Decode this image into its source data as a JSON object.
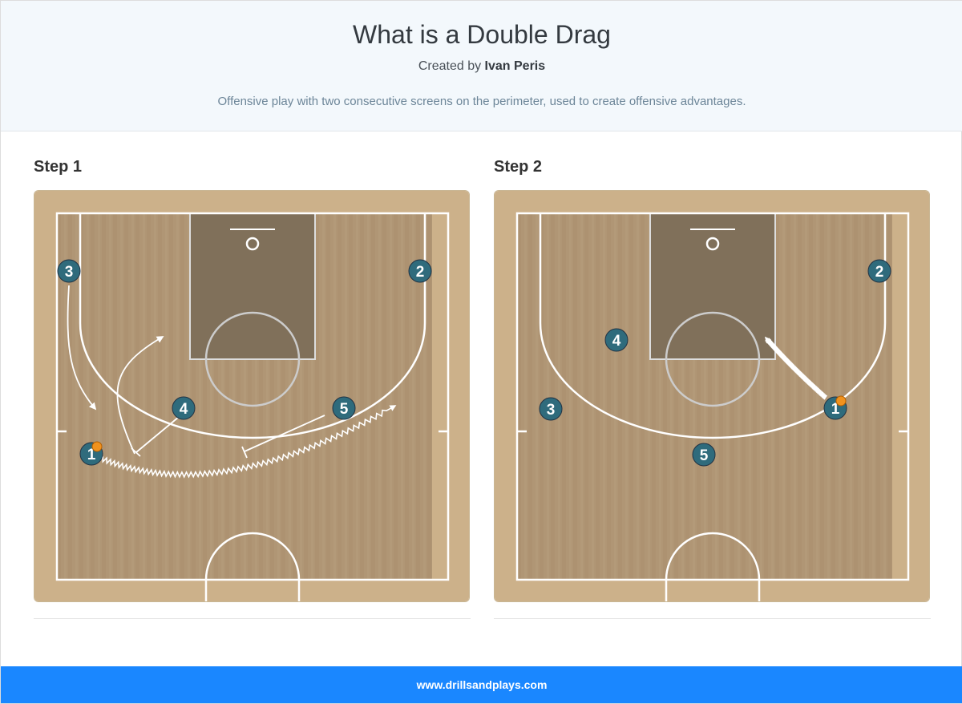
{
  "header": {
    "title": "What is a Double Drag",
    "created_by_label": "Created by",
    "author": "Ivan Peris",
    "description": "Offensive play with two consecutive screens on the perimeter, used to create offensive advantages."
  },
  "steps": [
    {
      "label": "Step 1",
      "players": [
        "1",
        "2",
        "3",
        "4",
        "5"
      ]
    },
    {
      "label": "Step 2",
      "players": [
        "1",
        "2",
        "3",
        "4",
        "5"
      ]
    }
  ],
  "colors": {
    "player": "#2f6b7c",
    "court_wood": "#b09675",
    "paint": "#80705a",
    "footer": "#1a87ff"
  },
  "footer": {
    "site": "www.drillsandplays.com"
  }
}
